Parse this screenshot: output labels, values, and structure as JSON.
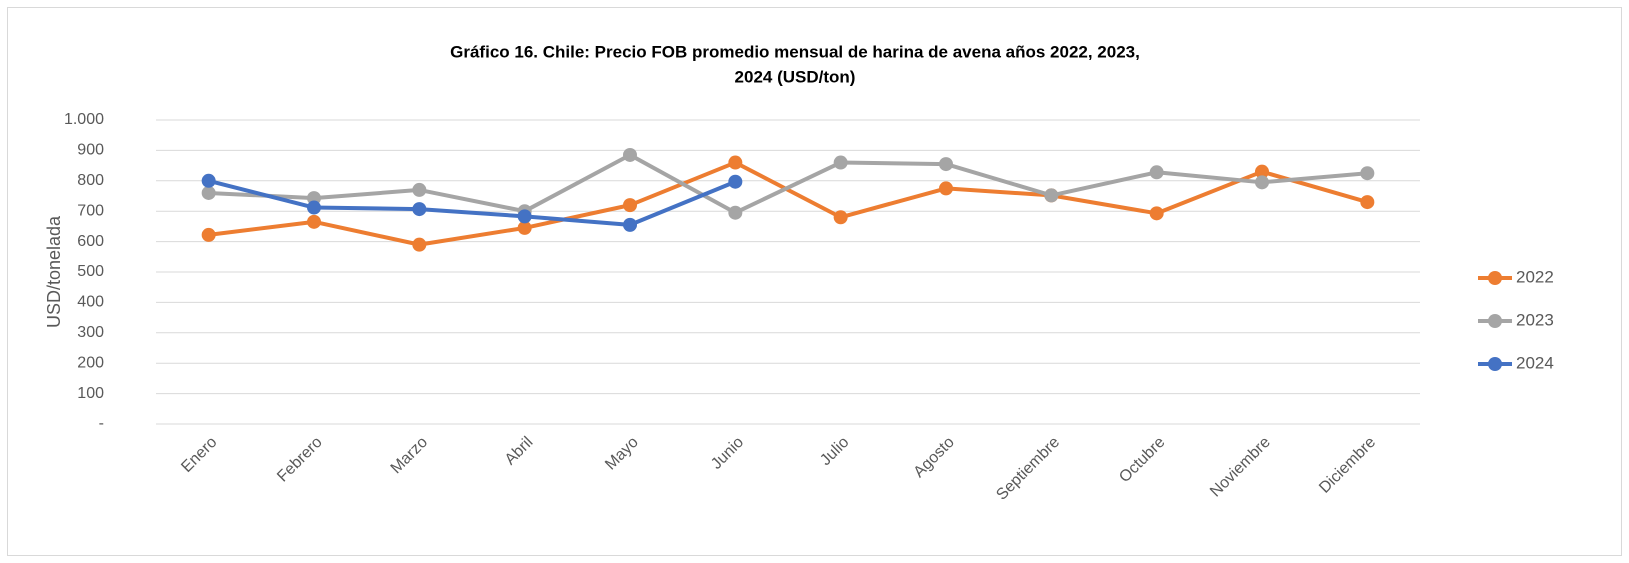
{
  "chart_data": {
    "type": "line",
    "title": [
      "Gráfico 16. Chile: Precio FOB promedio mensual de harina de avena años 2022, 2023,",
      "2024 (USD/ton)"
    ],
    "ylabel": "USD/tonelada",
    "categories": [
      "Enero",
      "Febrero",
      "Marzo",
      "Abril",
      "Mayo",
      "Junio",
      "Julio",
      "Agosto",
      "Septiembre",
      "Octubre",
      "Noviembre",
      "Diciembre"
    ],
    "series": [
      {
        "name": "2022",
        "color": "#ed7d31",
        "values": [
          622,
          665,
          590,
          645,
          720,
          860,
          680,
          775,
          752,
          693,
          830,
          730
        ]
      },
      {
        "name": "2023",
        "color": "#a5a5a5",
        "values": [
          760,
          743,
          770,
          700,
          885,
          695,
          860,
          855,
          752,
          828,
          795,
          825
        ]
      },
      {
        "name": "2024",
        "color": "#4472c4",
        "values": [
          800,
          712,
          707,
          683,
          655,
          797,
          null,
          null,
          null,
          null,
          null,
          null
        ]
      }
    ],
    "ylim": [
      0,
      1000
    ],
    "yticks": [
      {
        "value": 0,
        "label": "-"
      },
      100,
      200,
      300,
      400,
      500,
      600,
      700,
      800,
      900,
      {
        "value": 1000,
        "label": "1.000"
      }
    ],
    "grid": true,
    "legend": "right"
  }
}
